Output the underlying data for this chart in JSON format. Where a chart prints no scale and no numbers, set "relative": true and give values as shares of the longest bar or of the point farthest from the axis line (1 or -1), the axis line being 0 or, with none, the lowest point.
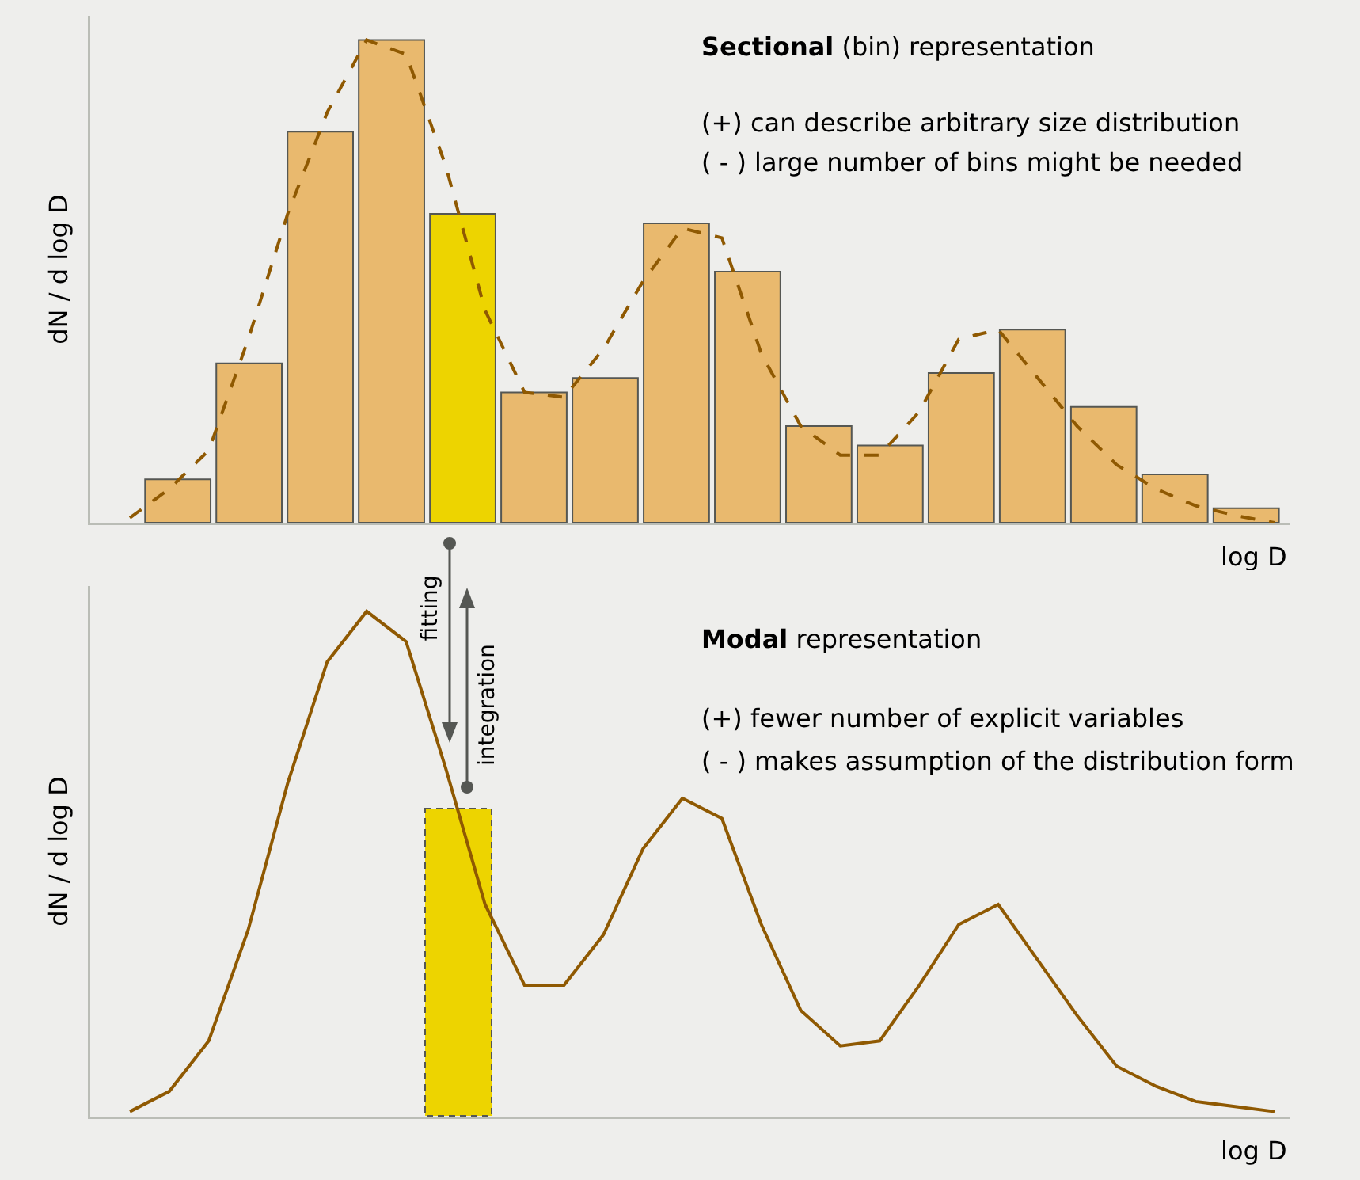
{
  "chart_data": [
    {
      "type": "bar",
      "relative": true,
      "title": "Sectional (bin) representation",
      "xlabel": "log D",
      "ylabel": "dN / d log D",
      "annotations": [
        "(+) can describe arbitrary size distribution",
        "( - ) large number of bins might be needed"
      ],
      "categories": [
        null,
        null,
        null,
        null,
        null,
        null,
        null,
        null,
        null,
        null,
        null,
        null,
        null,
        null,
        null,
        null
      ],
      "colors": [
        "#e9b96e",
        "#e9b96e",
        "#e9b96e",
        "#e9b96e",
        "#edd400",
        "#e9b96e",
        "#e9b96e",
        "#e9b96e",
        "#e9b96e",
        "#e9b96e",
        "#e9b96e",
        "#e9b96e",
        "#e9b96e",
        "#e9b96e",
        "#e9b96e",
        "#e9b96e"
      ],
      "values": [
        0.09,
        0.33,
        0.81,
        1,
        0.64,
        0.27,
        0.3,
        0.62,
        0.52,
        0.2,
        0.16,
        0.31,
        0.4,
        0.24,
        0.1,
        0.03
      ]
    },
    {
      "type": "line",
      "relative": true,
      "color": "#8f5902",
      "line_style": "dashed",
      "categories": [
        null,
        null,
        null,
        null,
        null,
        null,
        null,
        null,
        null,
        null,
        null,
        null,
        null,
        null,
        null,
        null,
        null,
        null,
        null,
        null,
        null,
        null,
        null,
        null,
        null,
        null,
        null,
        null,
        null,
        null
      ],
      "values": [
        0.01,
        0.07,
        0.15,
        0.38,
        0.64,
        0.85,
        1,
        0.97,
        0.74,
        0.44,
        0.27,
        0.26,
        0.36,
        0.5,
        0.61,
        0.59,
        0.35,
        0.2,
        0.14,
        0.14,
        0.23,
        0.38,
        0.4,
        0.3,
        0.2,
        0.12,
        0.07,
        0.035,
        0.015,
        0
      ]
    },
    {
      "type": "line",
      "relative": true,
      "color": "#8f5902",
      "line_style": "solid",
      "title": "Modal representation",
      "xlabel": "log D",
      "ylabel": "dN / d log D",
      "annotations": [
        "(+) fewer number of explicit variables",
        "( - ) makes assumption of the distribution form",
        "fitting",
        "integration"
      ],
      "categories": [
        null,
        null,
        null,
        null,
        null,
        null,
        null,
        null,
        null,
        null,
        null,
        null,
        null,
        null,
        null,
        null,
        null,
        null,
        null,
        null,
        null,
        null,
        null,
        null,
        null,
        null,
        null,
        null,
        null,
        null
      ],
      "values": [
        0.01,
        0.05,
        0.15,
        0.37,
        0.66,
        0.9,
        1,
        0.94,
        0.69,
        0.42,
        0.26,
        0.26,
        0.36,
        0.53,
        0.63,
        0.59,
        0.38,
        0.21,
        0.14,
        0.15,
        0.26,
        0.38,
        0.42,
        0.31,
        0.2,
        0.1,
        0.06,
        0.03,
        0.02,
        0.01
      ]
    }
  ]
}
